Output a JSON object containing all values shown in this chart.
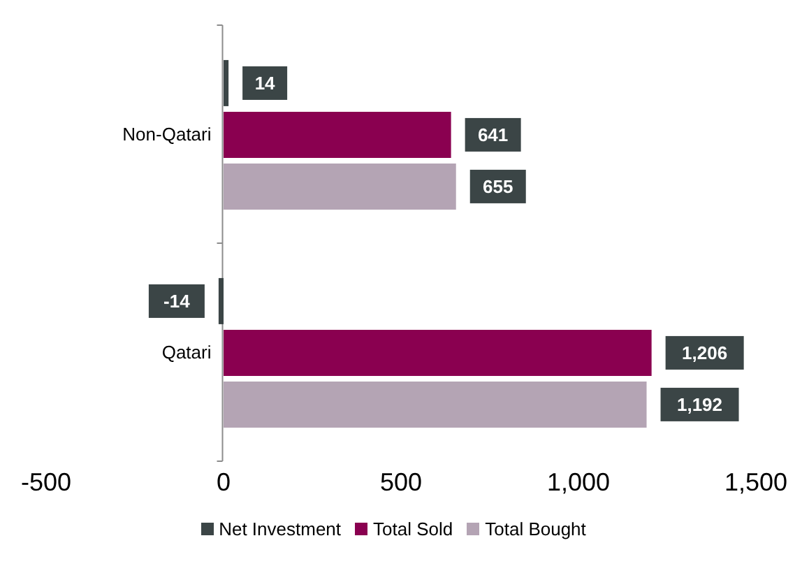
{
  "chart_data": {
    "type": "bar",
    "orientation": "horizontal",
    "categories": [
      "Non-Qatari",
      "Qatari"
    ],
    "series": [
      {
        "name": "Net Investment",
        "color": "#3b4546",
        "values": [
          14,
          -14
        ],
        "value_labels": [
          "14",
          "-14"
        ]
      },
      {
        "name": "Total Sold",
        "color": "#8a0050",
        "values": [
          641,
          1206
        ],
        "value_labels": [
          "641",
          "1,206"
        ]
      },
      {
        "name": "Total Bought",
        "color": "#b4a4b4",
        "values": [
          655,
          1192
        ],
        "value_labels": [
          "655",
          "1,192"
        ]
      }
    ],
    "xlim": [
      -500,
      1500
    ],
    "xticks": [
      -500,
      0,
      500,
      {
        "value": 1000,
        "label": "1,000"
      },
      {
        "value": 1500,
        "label": "1,500"
      }
    ],
    "legend": "bottom"
  }
}
